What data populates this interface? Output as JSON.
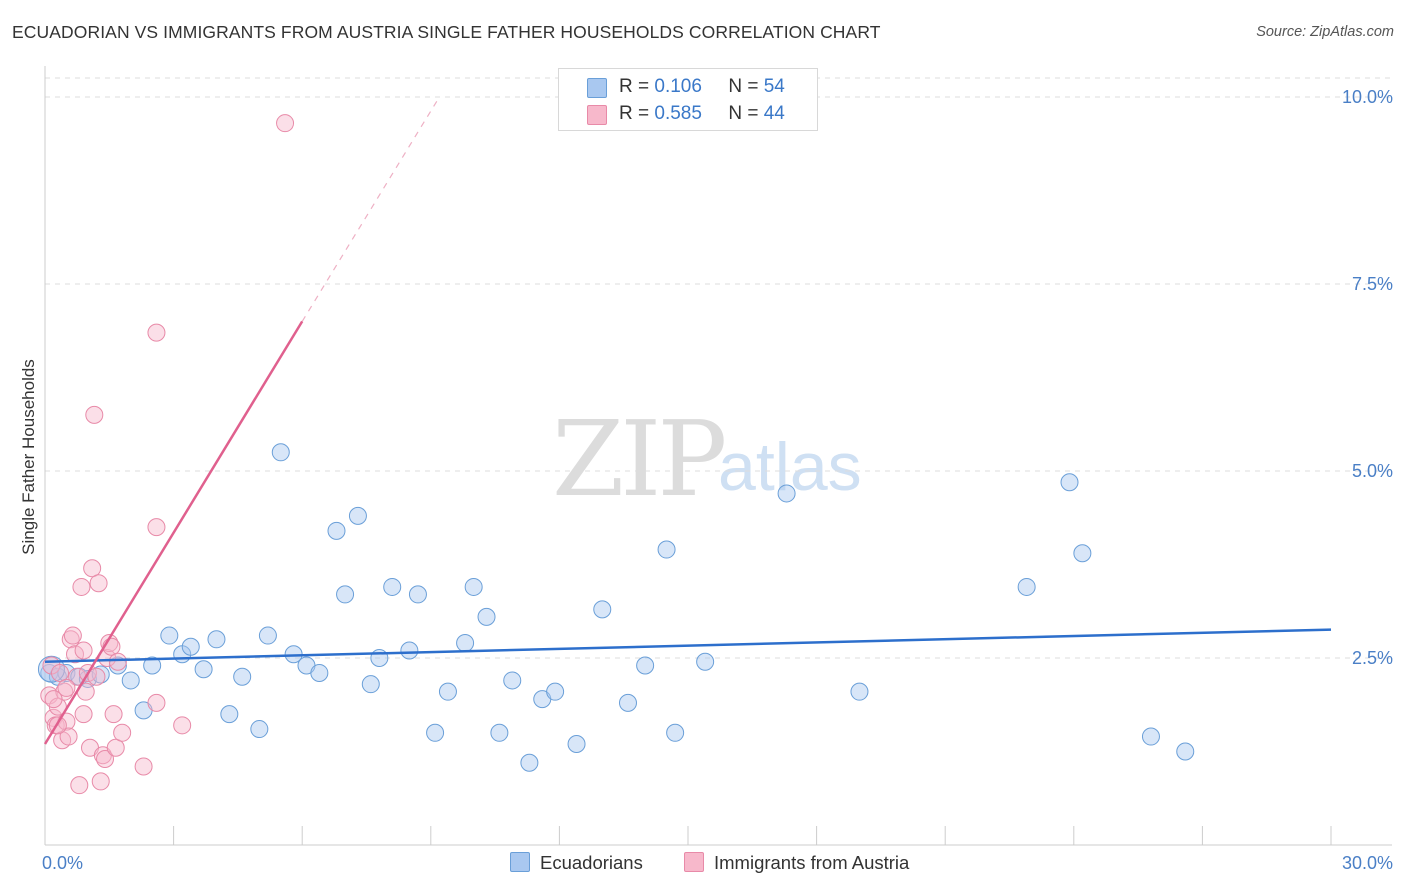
{
  "title": "ECUADORIAN VS IMMIGRANTS FROM AUSTRIA SINGLE FATHER HOUSEHOLDS CORRELATION CHART",
  "source": "Source: ZipAtlas.com",
  "watermark": {
    "zip": "ZIP",
    "atlas": "atlas"
  },
  "legend": {
    "rows": [
      {
        "r_label": "R =",
        "r_value": "0.106",
        "n_label": "N =",
        "n_value": "54",
        "color": "#a9c8f0"
      },
      {
        "r_label": "R =",
        "r_value": "0.585",
        "n_label": "N =",
        "n_value": "44",
        "color": "#f7b8cb"
      }
    ]
  },
  "colors": {
    "blue_fill": "#a9c8f0",
    "blue_stroke": "#6a9fd8",
    "blue_line": "#2d6fcc",
    "pink_fill": "#f7b8cb",
    "pink_stroke": "#e88aa8",
    "pink_line": "#e0608e",
    "grid": "#dddddd",
    "tick_label": "#4a7fc6"
  },
  "chart_data": {
    "type": "scatter",
    "xlabel": "",
    "ylabel": "Single Father Households",
    "xlim": [
      0,
      30
    ],
    "ylim": [
      0,
      10.3
    ],
    "x_tick_labels": [
      "0.0%",
      "30.0%"
    ],
    "y_ticks": [
      2.5,
      5.0,
      7.5,
      10.0
    ],
    "y_tick_labels": [
      "2.5%",
      "5.0%",
      "7.5%",
      "10.0%"
    ],
    "grid": "horizontal dashed",
    "series": [
      {
        "name": "Ecuadorians",
        "color": "#a9c8f0",
        "trend": {
          "x0": 0,
          "y0": 2.45,
          "x1": 30,
          "y1": 2.88
        },
        "points": [
          [
            0.1,
            2.3
          ],
          [
            0.3,
            2.25
          ],
          [
            0.5,
            2.3
          ],
          [
            0.8,
            2.25
          ],
          [
            1.0,
            2.22
          ],
          [
            1.3,
            2.28
          ],
          [
            1.7,
            2.4
          ],
          [
            2.0,
            2.2
          ],
          [
            2.3,
            1.8
          ],
          [
            2.5,
            2.4
          ],
          [
            2.9,
            2.8
          ],
          [
            3.2,
            2.55
          ],
          [
            3.4,
            2.65
          ],
          [
            3.7,
            2.35
          ],
          [
            4.0,
            2.75
          ],
          [
            4.3,
            1.75
          ],
          [
            4.6,
            2.25
          ],
          [
            5.0,
            1.55
          ],
          [
            5.2,
            2.8
          ],
          [
            5.5,
            5.25
          ],
          [
            5.8,
            2.55
          ],
          [
            6.1,
            2.4
          ],
          [
            6.4,
            2.3
          ],
          [
            6.8,
            4.2
          ],
          [
            7.0,
            3.35
          ],
          [
            7.3,
            4.4
          ],
          [
            7.6,
            2.15
          ],
          [
            7.8,
            2.5
          ],
          [
            8.1,
            3.45
          ],
          [
            8.5,
            2.6
          ],
          [
            8.7,
            3.35
          ],
          [
            9.1,
            1.5
          ],
          [
            9.4,
            2.05
          ],
          [
            9.8,
            2.7
          ],
          [
            10.0,
            3.45
          ],
          [
            10.3,
            3.05
          ],
          [
            10.6,
            1.5
          ],
          [
            10.9,
            2.2
          ],
          [
            11.3,
            1.1
          ],
          [
            11.6,
            1.95
          ],
          [
            11.9,
            2.05
          ],
          [
            12.4,
            1.35
          ],
          [
            13.0,
            3.15
          ],
          [
            13.6,
            1.9
          ],
          [
            14.0,
            2.4
          ],
          [
            14.5,
            3.95
          ],
          [
            14.7,
            1.5
          ],
          [
            15.4,
            2.45
          ],
          [
            17.3,
            4.7
          ],
          [
            19.0,
            2.05
          ],
          [
            22.9,
            3.45
          ],
          [
            23.9,
            4.85
          ],
          [
            24.2,
            3.9
          ],
          [
            25.8,
            1.45
          ],
          [
            26.6,
            1.25
          ]
        ]
      },
      {
        "name": "Immigrants from Austria",
        "color": "#f7b8cb",
        "trend": {
          "x0": 0,
          "y0": 1.35,
          "x1": 6.0,
          "y1": 7.0,
          "dash_to_x": 9.2,
          "dash_to_y": 10.0
        },
        "points": [
          [
            0.1,
            2.0
          ],
          [
            0.15,
            2.4
          ],
          [
            0.2,
            1.7
          ],
          [
            0.25,
            1.6
          ],
          [
            0.3,
            1.85
          ],
          [
            0.35,
            2.3
          ],
          [
            0.4,
            1.4
          ],
          [
            0.45,
            2.05
          ],
          [
            0.5,
            1.65
          ],
          [
            0.55,
            1.45
          ],
          [
            0.6,
            2.75
          ],
          [
            0.65,
            2.8
          ],
          [
            0.7,
            2.55
          ],
          [
            0.75,
            2.25
          ],
          [
            0.8,
            0.8
          ],
          [
            0.85,
            3.45
          ],
          [
            0.9,
            1.75
          ],
          [
            0.95,
            2.05
          ],
          [
            1.0,
            2.3
          ],
          [
            1.05,
            1.3
          ],
          [
            1.1,
            3.7
          ],
          [
            1.15,
            5.75
          ],
          [
            1.2,
            2.25
          ],
          [
            1.25,
            3.5
          ],
          [
            1.3,
            0.85
          ],
          [
            1.35,
            1.2
          ],
          [
            1.4,
            1.15
          ],
          [
            1.45,
            2.5
          ],
          [
            1.5,
            2.7
          ],
          [
            1.55,
            2.65
          ],
          [
            1.6,
            1.75
          ],
          [
            1.65,
            1.3
          ],
          [
            1.7,
            2.45
          ],
          [
            1.8,
            1.5
          ],
          [
            2.3,
            1.05
          ],
          [
            2.6,
            1.9
          ],
          [
            2.6,
            4.25
          ],
          [
            2.6,
            6.85
          ],
          [
            3.2,
            1.6
          ],
          [
            5.6,
            9.65
          ],
          [
            0.2,
            1.95
          ],
          [
            0.5,
            2.1
          ],
          [
            0.9,
            2.6
          ],
          [
            0.3,
            1.6
          ]
        ]
      }
    ]
  },
  "bottom_legend": [
    {
      "label": "Ecuadorians",
      "color": "#a9c8f0"
    },
    {
      "label": "Immigrants from Austria",
      "color": "#f7b8cb"
    }
  ]
}
